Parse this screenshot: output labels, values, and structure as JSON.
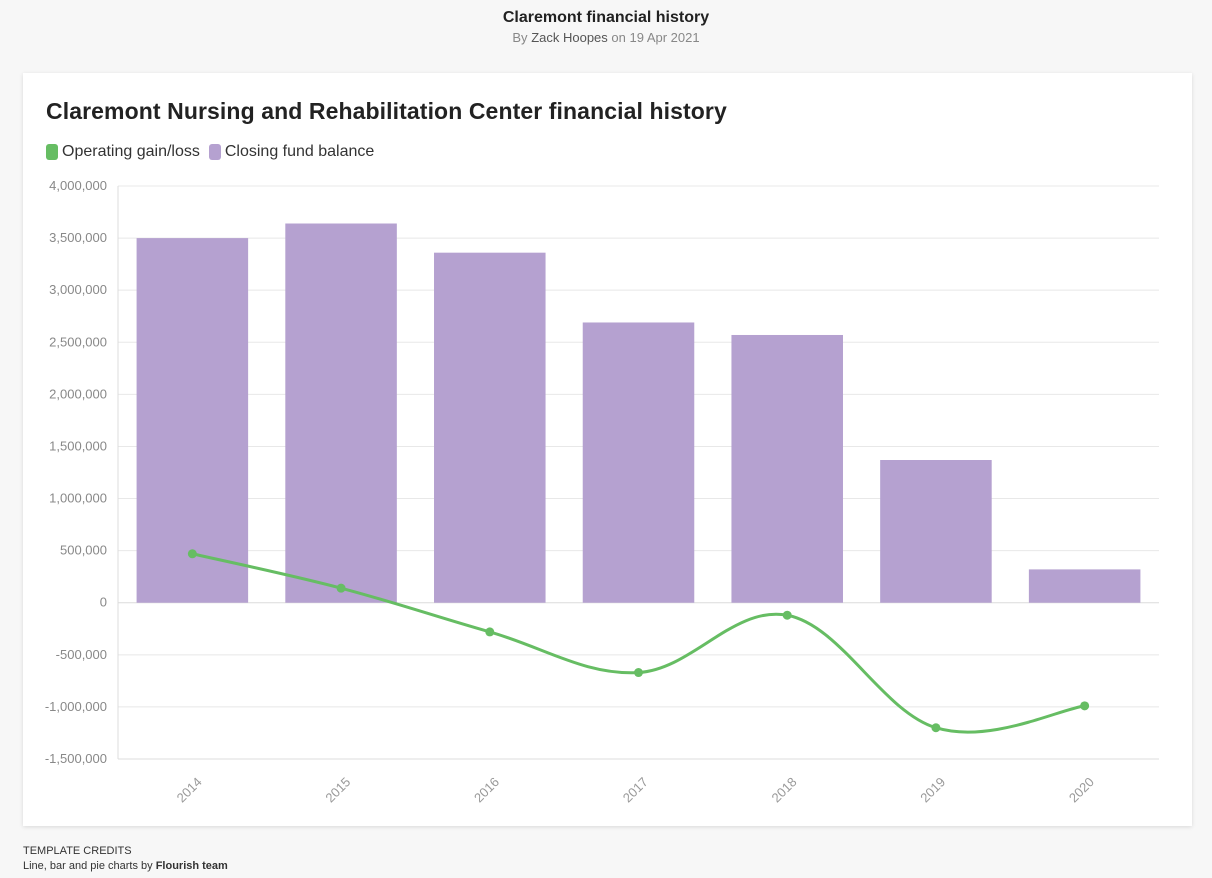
{
  "header": {
    "title": "Claremont financial history",
    "by_prefix": "By",
    "author": "Zack Hoopes",
    "date_text": "on 19 Apr 2021"
  },
  "credits": {
    "title": "TEMPLATE CREDITS",
    "text": "Line, bar and pie charts by",
    "team": "Flourish team"
  },
  "chart_data": {
    "type": "bar",
    "title": "Claremont Nursing and Rehabilitation Center financial history",
    "categories": [
      "2014",
      "2015",
      "2016",
      "2017",
      "2018",
      "2019",
      "2020"
    ],
    "series": [
      {
        "name": "Operating gain/loss",
        "type": "line",
        "color": "#66bd63",
        "values": [
          470000,
          140000,
          -280000,
          -670000,
          -120000,
          -1200000,
          -990000
        ]
      },
      {
        "name": "Closing fund balance",
        "type": "bar",
        "color": "#b5a1d0",
        "values": [
          3500000,
          3640000,
          3360000,
          2690000,
          2570000,
          1370000,
          320000
        ]
      }
    ],
    "ylim": [
      -1500000,
      4000000
    ],
    "yticks": [
      "-1,500,000",
      "-1,000,000",
      "-500,000",
      "0",
      "500,000",
      "1,000,000",
      "1,500,000",
      "2,000,000",
      "2,500,000",
      "3,000,000",
      "3,500,000",
      "4,000,000"
    ],
    "ytick_values": [
      -1500000,
      -1000000,
      -500000,
      0,
      500000,
      1000000,
      1500000,
      2000000,
      2500000,
      3000000,
      3500000,
      4000000
    ],
    "grid": true,
    "legend_position": "top-left"
  }
}
